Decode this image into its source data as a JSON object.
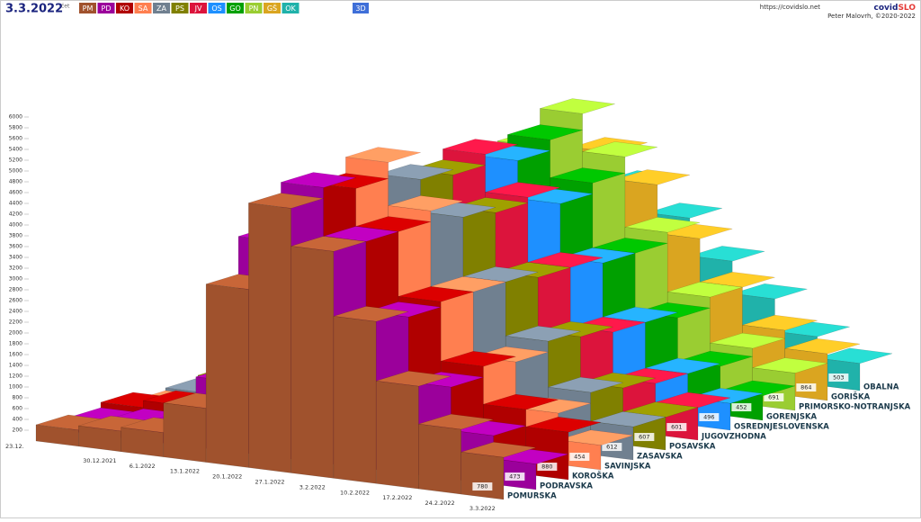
{
  "chart_data": {
    "type": "bar3d",
    "title": "3.3.2022",
    "weekday": "čet",
    "site": "https://covidslo.net",
    "brand": {
      "a": "covid",
      "b": "SLO"
    },
    "author": "Peter Malovrh, ©2020-2022",
    "view_button": "3D",
    "categories": [
      "23.12.",
      "30.12.2021",
      "6.1.2022",
      "13.1.2022",
      "20.1.2022",
      "27.1.2022",
      "3.2.2022",
      "10.2.2022",
      "17.2.2022",
      "24.2.2022",
      "3.3.2022"
    ],
    "ylim": [
      0,
      6000
    ],
    "yticks": [
      200,
      400,
      600,
      800,
      1000,
      1200,
      1400,
      1600,
      1800,
      2000,
      2200,
      2400,
      2600,
      2800,
      3000,
      3200,
      3400,
      3600,
      3800,
      4000,
      4200,
      4400,
      4600,
      4800,
      5000,
      5200,
      5400,
      5600,
      5800,
      6000
    ],
    "series": [
      {
        "code": "PM",
        "name": "POMURSKA",
        "color": "#a0522d",
        "values": [
          300,
          380,
          450,
          1000,
          3300,
          4900,
          4200,
          3000,
          1900,
          1200,
          780
        ]
      },
      {
        "code": "PD",
        "name": "PODRAVSKA",
        "color": "#9b009b",
        "values": [
          250,
          330,
          400,
          1300,
          4000,
          5100,
          4200,
          2900,
          1700,
          900,
          473
        ]
      },
      {
        "code": "KO",
        "name": "KOROŠKA",
        "color": "#b00000",
        "values": [
          350,
          480,
          520,
          1200,
          3700,
          4900,
          4200,
          3000,
          1900,
          1200,
          880
        ]
      },
      {
        "code": "SA",
        "name": "SAVINJSKA",
        "color": "#ff7f50",
        "values": [
          200,
          280,
          350,
          1100,
          3700,
          5200,
          4400,
          3000,
          1800,
          950,
          454
        ]
      },
      {
        "code": "ZA",
        "name": "ZASAVSKA",
        "color": "#708090",
        "values": [
          250,
          330,
          400,
          1000,
          3300,
          4700,
          4100,
          3000,
          2000,
          1150,
          612
        ]
      },
      {
        "code": "PS",
        "name": "POSAVSKA",
        "color": "#808000",
        "values": [
          300,
          400,
          550,
          1400,
          3600,
          4600,
          4000,
          2900,
          1900,
          1050,
          607
        ]
      },
      {
        "code": "JV",
        "name": "JUGOVZHODNA",
        "color": "#dc143c",
        "values": [
          200,
          300,
          450,
          1400,
          3800,
          4800,
          4100,
          2900,
          1800,
          950,
          601
        ]
      },
      {
        "code": "OS",
        "name": "OSREDNJESLOVENSKA",
        "color": "#1e90ff",
        "values": [
          250,
          350,
          500,
          1500,
          3700,
          4500,
          3800,
          2800,
          1800,
          950,
          496
        ]
      },
      {
        "code": "GO",
        "name": "GORENJSKA",
        "color": "#00a000",
        "values": [
          200,
          300,
          500,
          1700,
          4000,
          4700,
          4000,
          2800,
          1700,
          900,
          452
        ]
      },
      {
        "code": "PN",
        "name": "PRIMORSKO-NOTRANJSKA",
        "color": "#9acd32",
        "values": [
          300,
          400,
          650,
          2000,
          4300,
          5000,
          4300,
          3000,
          1900,
          1050,
          691
        ]
      },
      {
        "code": "GŠ",
        "name": "GORIŠKA",
        "color": "#daa520",
        "values": [
          300,
          400,
          600,
          1600,
          3500,
          4100,
          3600,
          2700,
          1900,
          1200,
          864
        ]
      },
      {
        "code": "OK",
        "name": "OBALNA",
        "color": "#20b2aa",
        "values": [
          250,
          350,
          550,
          1300,
          3000,
          3300,
          2800,
          2100,
          1500,
          900,
          503
        ]
      }
    ]
  }
}
